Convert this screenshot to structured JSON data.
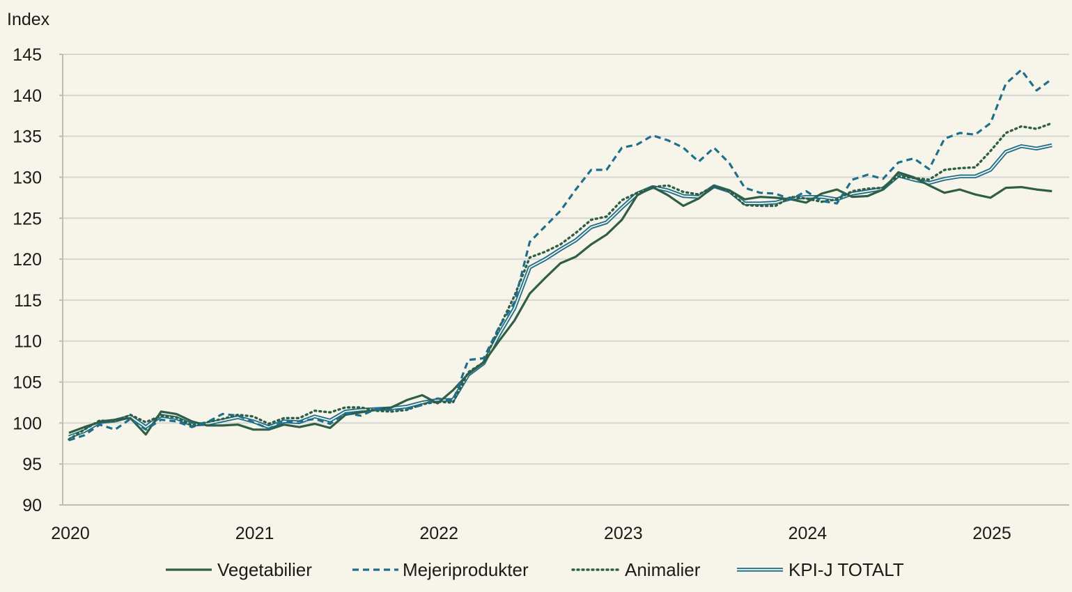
{
  "chart_data": {
    "type": "line",
    "ylabel": "Index",
    "ylim": [
      90,
      145
    ],
    "yticks": [
      90,
      95,
      100,
      105,
      110,
      115,
      120,
      125,
      130,
      135,
      140,
      145
    ],
    "xlabels": [
      "2020",
      "2021",
      "2022",
      "2023",
      "2024",
      "2025"
    ],
    "x_start_year": 2020,
    "grid": "horizontal",
    "legend_position": "bottom",
    "colors": {
      "vegetabilier": "#2e5e45",
      "mejeriprodukter": "#1f6e8c",
      "animalier": "#2e5e45",
      "kpi_total": "#1f6e8c"
    },
    "series": [
      {
        "name": "Vegetabilier",
        "style": "solid",
        "values": [
          98.8,
          99.5,
          100.1,
          100.4,
          100.6,
          98.6,
          101.4,
          101.1,
          100.2,
          99.7,
          99.7,
          99.8,
          99.2,
          99.2,
          99.8,
          99.5,
          99.9,
          99.4,
          101.0,
          101.3,
          101.6,
          101.9,
          102.8,
          103.4,
          102.4,
          104.0,
          106.0,
          107.4,
          110.0,
          112.5,
          115.8,
          117.7,
          119.5,
          120.3,
          121.8,
          123.0,
          124.8,
          127.8,
          128.8,
          127.8,
          126.5,
          127.4,
          128.9,
          128.4,
          127.3,
          127.6,
          127.5,
          127.3,
          126.9,
          128.0,
          128.5,
          127.6,
          127.7,
          128.5,
          130.6,
          130.0,
          129.0,
          128.1,
          128.5,
          127.9,
          127.5,
          128.7,
          128.8,
          128.5,
          128.3
        ]
      },
      {
        "name": "Mejeriprodukter",
        "style": "dashed",
        "values": [
          97.9,
          98.5,
          99.8,
          99.2,
          100.5,
          99.2,
          100.4,
          100.2,
          99.5,
          100.1,
          101.1,
          100.9,
          100.1,
          99.3,
          100.2,
          100.2,
          100.5,
          99.9,
          101.2,
          100.9,
          101.7,
          101.6,
          101.7,
          102.2,
          103.0,
          102.7,
          107.7,
          107.9,
          111.7,
          114.7,
          122.1,
          124.0,
          125.9,
          128.5,
          130.9,
          130.9,
          133.6,
          134.0,
          135.1,
          134.5,
          133.6,
          131.9,
          133.6,
          131.7,
          128.7,
          128.1,
          128.0,
          127.3,
          128.3,
          127.1,
          126.8,
          129.7,
          130.3,
          129.8,
          131.8,
          132.3,
          131.0,
          134.7,
          135.4,
          135.2,
          136.6,
          141.4,
          143.1,
          140.6,
          142.0
        ]
      },
      {
        "name": "Animalier",
        "style": "dotted",
        "values": [
          98.0,
          99.2,
          100.3,
          100.2,
          101.0,
          100.1,
          100.9,
          100.7,
          99.7,
          100.1,
          100.5,
          101.0,
          100.8,
          99.9,
          100.6,
          100.6,
          101.5,
          101.3,
          101.9,
          101.9,
          101.5,
          101.4,
          101.6,
          102.3,
          102.6,
          102.5,
          106.2,
          107.4,
          111.6,
          115.5,
          120.2,
          120.9,
          121.8,
          123.2,
          124.8,
          125.2,
          127.2,
          128.1,
          128.8,
          129.0,
          128.2,
          127.9,
          128.9,
          128.3,
          126.6,
          126.5,
          126.5,
          127.6,
          127.4,
          127.0,
          127.3,
          128.3,
          128.6,
          128.7,
          130.1,
          129.9,
          129.7,
          130.9,
          131.1,
          131.2,
          133.2,
          135.4,
          136.2,
          135.9,
          136.6
        ]
      },
      {
        "name": "KPI-J TOTALT",
        "style": "double",
        "values": [
          98.3,
          99.0,
          100.1,
          100.3,
          100.8,
          99.5,
          100.9,
          100.6,
          99.8,
          99.9,
          100.3,
          100.7,
          100.2,
          99.5,
          100.2,
          100.1,
          100.8,
          100.3,
          101.4,
          101.6,
          101.7,
          101.8,
          102.0,
          102.5,
          102.8,
          102.8,
          105.9,
          107.3,
          110.8,
          114.0,
          119.0,
          120.0,
          121.2,
          122.3,
          123.9,
          124.5,
          126.3,
          128.0,
          128.8,
          128.4,
          127.7,
          127.6,
          128.9,
          128.3,
          126.8,
          126.8,
          126.9,
          127.4,
          127.6,
          127.6,
          127.3,
          128.0,
          128.3,
          128.6,
          130.2,
          129.7,
          129.3,
          129.8,
          130.1,
          130.1,
          130.9,
          133.1,
          133.8,
          133.5,
          133.9
        ]
      }
    ]
  }
}
